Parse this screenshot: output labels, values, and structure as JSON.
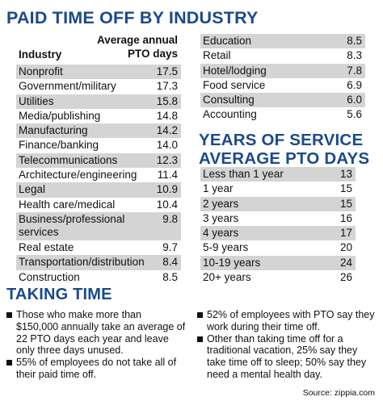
{
  "main_title": "PAID TIME OFF BY INDUSTRY",
  "industry_header": "Industry",
  "pto_header_line1": "Average annual",
  "pto_header_line2": "PTO days",
  "industries_left": [
    {
      "label": "Nonprofit",
      "value": "17.5"
    },
    {
      "label": "Government/military",
      "value": "17.3"
    },
    {
      "label": "Utilities",
      "value": "15.8"
    },
    {
      "label": "Media/publishing",
      "value": "14.8"
    },
    {
      "label": "Manufacturing",
      "value": "14.2"
    },
    {
      "label": "Finance/banking",
      "value": "14.0"
    },
    {
      "label": "Telecommunications",
      "value": "12.3"
    },
    {
      "label": "Architecture/engineering",
      "value": "11.4"
    },
    {
      "label": "Legal",
      "value": "10.9"
    },
    {
      "label": "Health care/medical",
      "value": "10.4"
    },
    {
      "label": "Business/professional services",
      "value": "9.8"
    },
    {
      "label": "Real estate",
      "value": "9.7"
    },
    {
      "label": "Transportation/distribution",
      "value": "8.4"
    },
    {
      "label": "Construction",
      "value": "8.5"
    }
  ],
  "industries_right": [
    {
      "label": "Education",
      "value": "8.5"
    },
    {
      "label": "Retail",
      "value": "8.3"
    },
    {
      "label": "Hotel/lodging",
      "value": "7.8"
    },
    {
      "label": "Food service",
      "value": "6.9"
    },
    {
      "label": "Consulting",
      "value": "6.0"
    },
    {
      "label": "Accounting",
      "value": "5.6"
    }
  ],
  "yos_title_line1": "YEARS OF SERVICE",
  "yos_title_line2": "AVERAGE PTO DAYS",
  "years_of_service": [
    {
      "label": "Less than 1 year",
      "value": "13"
    },
    {
      "label": "1 year",
      "value": "15"
    },
    {
      "label": "2 years",
      "value": "15"
    },
    {
      "label": "3 years",
      "value": "16"
    },
    {
      "label": "4 years",
      "value": "17"
    },
    {
      "label": "5-9 years",
      "value": "20"
    },
    {
      "label": "10-19 years",
      "value": "24"
    },
    {
      "label": "20+ years",
      "value": "26"
    }
  ],
  "taking_time_title": "TAKING TIME",
  "bullets_left": [
    "Those who make more than $150,000 annually take an average of 22 PTO days each year and leave only three days unused.",
    "55% of employees do not take all of their paid time off."
  ],
  "bullets_right": [
    "52% of employees with PTO say they work during their time off.",
    "Other than taking time off for a traditional vacation, 25% say they take time off to sleep; 50% say they need a mental health day."
  ],
  "source": "Source: zippia.com"
}
